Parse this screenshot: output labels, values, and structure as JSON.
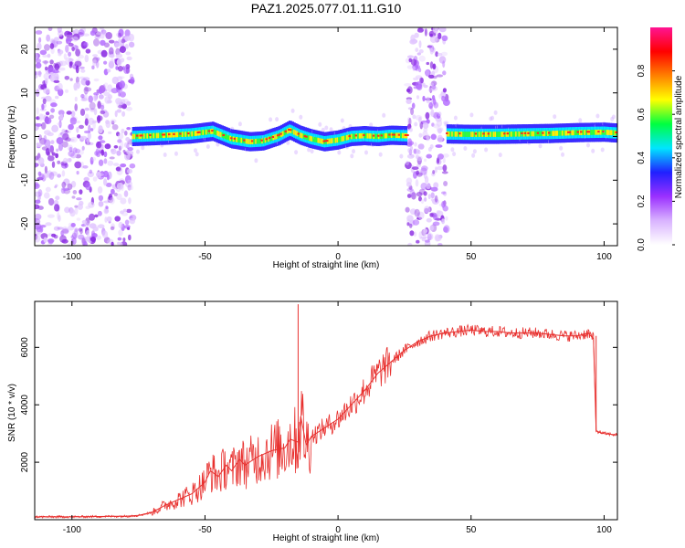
{
  "figure": {
    "title": "PAZ1.2025.077.01.11.G10"
  },
  "chart_data": [
    {
      "type": "heatmap",
      "xlabel": "Height of straight line (km)",
      "ylabel": "Frequency (Hz)",
      "xlim": [
        -114,
        105
      ],
      "ylim": [
        -25,
        25
      ],
      "xticks": [
        -100,
        -50,
        0,
        50,
        100
      ],
      "yticks": [
        -20,
        -10,
        0,
        10,
        20
      ],
      "colorbar": {
        "label": "Normalized spectral amplitude",
        "range": [
          0,
          1
        ],
        "ticks": [
          0.0,
          0.2,
          0.4,
          0.6,
          0.8
        ],
        "colormap": [
          "#ffffff",
          "#d9b3ff",
          "#9b30ff",
          "#2020ff",
          "#00e5ff",
          "#00ff40",
          "#ffff00",
          "#ff8000",
          "#ff0000",
          "#ff1493"
        ]
      },
      "noise_regions": [
        {
          "x": [
            -114,
            -77
          ],
          "y": [
            -25,
            25
          ],
          "intensity": 0.2
        },
        {
          "x": [
            26,
            41
          ],
          "y": [
            -25,
            25
          ],
          "intensity": 0.2
        }
      ],
      "ridge": {
        "x": [
          -77,
          -65,
          -55,
          -47,
          -40,
          -33,
          -28,
          -22,
          -18,
          -14,
          -10,
          -5,
          0,
          5,
          10,
          15,
          20,
          25,
          30,
          35,
          40,
          50,
          60,
          70,
          80,
          90,
          100,
          105
        ],
        "y": [
          0,
          0.3,
          0.6,
          1.2,
          -0.5,
          -1.2,
          -1.0,
          0.2,
          1.5,
          0.3,
          -0.5,
          -1.2,
          -0.8,
          0.0,
          0.2,
          0.0,
          0.3,
          0.2,
          0.0,
          0.5,
          0.6,
          0.5,
          0.5,
          0.6,
          0.7,
          0.9,
          1.0,
          0.8
        ]
      }
    },
    {
      "type": "line",
      "xlabel": "Height of straight line (km)",
      "ylabel": "SNR (10 * v/v)",
      "xlim": [
        -114,
        105
      ],
      "ylim": [
        0,
        7600
      ],
      "xticks": [
        -100,
        -50,
        0,
        50,
        100
      ],
      "yticks": [
        2000,
        4000,
        6000
      ],
      "color": "#e8312f",
      "series": [
        {
          "x": [
            -114,
            -100,
            -90,
            -80,
            -75,
            -70,
            -65,
            -60,
            -55,
            -50,
            -48,
            -45,
            -42,
            -40,
            -37,
            -35,
            -30,
            -25,
            -20,
            -18,
            -15,
            -14,
            -12,
            -10,
            -5,
            0,
            5,
            10,
            15,
            20,
            25,
            30,
            35,
            40,
            45,
            50,
            55,
            60,
            65,
            70,
            75,
            80,
            85,
            90,
            94,
            96,
            97,
            98,
            100,
            105
          ],
          "y": [
            100,
            100,
            110,
            120,
            150,
            250,
            500,
            700,
            900,
            1300,
            1700,
            1500,
            1900,
            1700,
            2100,
            1900,
            2200,
            2400,
            2500,
            2800,
            2700,
            3600,
            2600,
            2900,
            3200,
            3500,
            4000,
            4500,
            5100,
            5500,
            5900,
            6200,
            6400,
            6500,
            6550,
            6600,
            6550,
            6550,
            6500,
            6500,
            6500,
            6450,
            6400,
            6400,
            6500,
            6300,
            3100,
            3050,
            3000,
            2950
          ]
        }
      ]
    }
  ]
}
